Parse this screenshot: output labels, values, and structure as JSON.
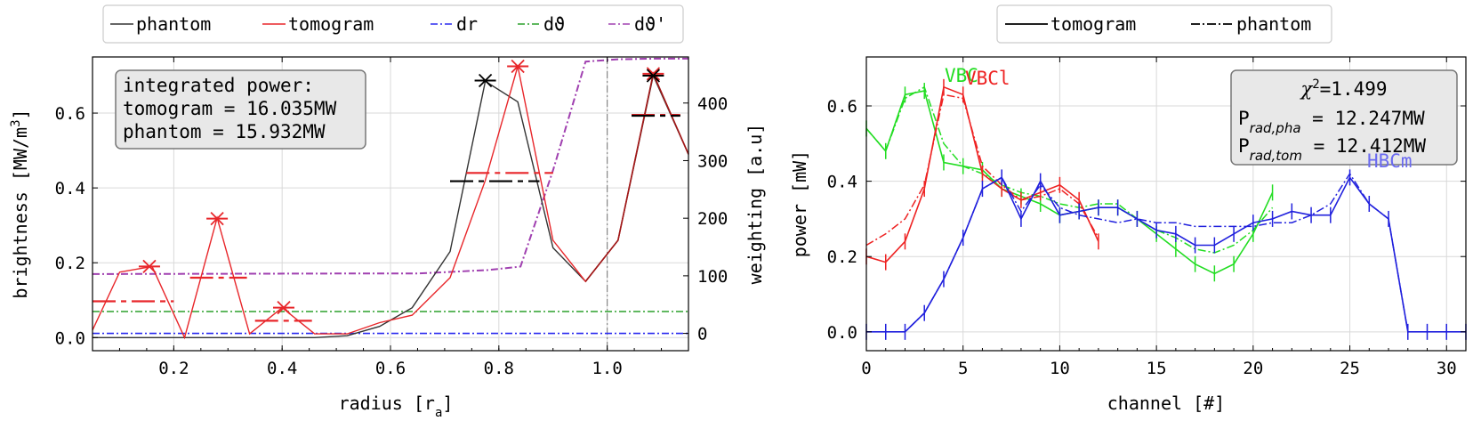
{
  "colors": {
    "phantom": "#333333",
    "tomogram": "#e8262a",
    "dr": "#2a2aef",
    "dtheta": "#2ca02c",
    "dtheta_prime": "#a040b0",
    "VBC": "#22dd22",
    "VBCl": "#ee2222",
    "HBCm": "#2020dd",
    "HBCm_label": "#6a6af0",
    "box_face": "#e8e8e8",
    "box_edge": "#777777",
    "grid": "#d9d9d9",
    "dashed_vline": "#888888"
  },
  "chart_data": [
    {
      "type": "line",
      "xlabel": "radius [r_a]",
      "ylabel": "brightness [MW/m^3]",
      "y2label": "weighting [a.u]",
      "xlim": [
        0.05,
        1.15
      ],
      "ylim": [
        -0.035,
        0.75
      ],
      "y2lim": [
        -30,
        480
      ],
      "xticks": [
        "0.2",
        "0.4",
        "0.6",
        "0.8",
        "1.0"
      ],
      "yticks": [
        "0.0",
        "0.2",
        "0.4",
        "0.6"
      ],
      "y2ticks": [
        "0",
        "100",
        "200",
        "300",
        "400"
      ],
      "legend": [
        "phantom",
        "tomogram",
        "dr",
        "dϑ",
        "dϑ'"
      ],
      "annotation": {
        "line1": "integrated power:",
        "line2": "tomogram = 16.035MW",
        "line3": "phantom = 15.932MW"
      },
      "series": {
        "phantom": {
          "x": [
            0.05,
            0.1,
            0.16,
            0.22,
            0.28,
            0.34,
            0.4,
            0.46,
            0.52,
            0.58,
            0.64,
            0.71,
            0.775,
            0.835,
            0.9,
            0.96,
            1.02,
            1.085,
            1.15
          ],
          "y": [
            0.0,
            0.0,
            0.0,
            0.0,
            0.0,
            0.0,
            0.0,
            0.0,
            0.005,
            0.03,
            0.08,
            0.23,
            0.685,
            0.63,
            0.24,
            0.15,
            0.26,
            0.7,
            0.49
          ]
        },
        "tomogram": {
          "x": [
            0.05,
            0.1,
            0.16,
            0.22,
            0.28,
            0.34,
            0.4,
            0.46,
            0.52,
            0.58,
            0.64,
            0.71,
            0.775,
            0.835,
            0.9,
            0.96,
            1.02,
            1.085,
            1.15
          ],
          "y": [
            0.02,
            0.175,
            0.19,
            0.0,
            0.32,
            0.01,
            0.08,
            0.01,
            0.01,
            0.04,
            0.06,
            0.16,
            0.42,
            0.725,
            0.26,
            0.15,
            0.26,
            0.705,
            0.49
          ]
        },
        "dr": {
          "x": [
            0.05,
            1.15
          ],
          "y2": [
            0,
            0
          ]
        },
        "dtheta": {
          "x": [
            0.05,
            1.15
          ],
          "y2": [
            38,
            38
          ]
        },
        "dtheta_prime": {
          "x": [
            0.05,
            0.5,
            0.65,
            0.78,
            0.84,
            0.9,
            0.96,
            1.02,
            1.085,
            1.15
          ],
          "y2": [
            103,
            104,
            104,
            110,
            116,
            283,
            472,
            476,
            477,
            477
          ]
        }
      },
      "tomogram_markers": [
        {
          "x": 0.155,
          "y": 0.19
        },
        {
          "x": 0.28,
          "y": 0.318
        },
        {
          "x": 0.403,
          "y": 0.08
        },
        {
          "x": 0.835,
          "y": 0.725
        },
        {
          "x": 1.085,
          "y": 0.705
        }
      ],
      "phantom_markers": [
        {
          "x": 0.775,
          "y": 0.687
        },
        {
          "x": 1.085,
          "y": 0.7
        }
      ],
      "tomogram_bins": [
        {
          "x0": 0.05,
          "x1": 0.2,
          "y": 0.097
        },
        {
          "x0": 0.23,
          "x1": 0.335,
          "y": 0.16
        },
        {
          "x0": 0.35,
          "x1": 0.455,
          "y": 0.045
        },
        {
          "x0": 0.74,
          "x1": 0.9,
          "y": 0.44
        },
        {
          "x0": 1.045,
          "x1": 1.135,
          "y": 0.595
        }
      ],
      "phantom_bins": [
        {
          "x0": 0.71,
          "x1": 0.875,
          "y": 0.418
        },
        {
          "x0": 1.045,
          "x1": 1.135,
          "y": 0.593
        }
      ],
      "vline_x": 1.0
    },
    {
      "type": "line",
      "xlabel": "channel [#]",
      "ylabel": "power [mW]",
      "xlim": [
        0,
        31
      ],
      "ylim": [
        -0.05,
        0.73
      ],
      "xticks": [
        "0",
        "5",
        "10",
        "15",
        "20",
        "25",
        "30"
      ],
      "yticks": [
        "0.0",
        "0.2",
        "0.4",
        "0.6"
      ],
      "legend": [
        "tomogram",
        "phantom"
      ],
      "annotation": {
        "chi": "χ²=1.499",
        "pha_label": "P",
        "pha_sub": "rad,pha",
        "pha_val": " = 12.247MW",
        "tom_label": "P",
        "tom_sub": "rad,tom",
        "tom_val": " = 12.412MW"
      },
      "labels": {
        "VBC": "VBC",
        "VBCl": "VBCl",
        "HBCm": "HBCm"
      },
      "series": [
        {
          "name": "VBC",
          "x": [
            0,
            1,
            2,
            3,
            4,
            5,
            6,
            7,
            8,
            9,
            10,
            11,
            12,
            13,
            14,
            15,
            16,
            17,
            18,
            19,
            20,
            21
          ],
          "tomogram": [
            0.54,
            0.48,
            0.63,
            0.64,
            0.45,
            0.44,
            0.43,
            0.38,
            0.36,
            0.34,
            0.31,
            0.32,
            0.33,
            0.33,
            0.3,
            0.26,
            0.22,
            0.18,
            0.155,
            0.18,
            0.26,
            0.37
          ],
          "phantom": [
            0.54,
            0.48,
            0.62,
            0.65,
            0.5,
            0.44,
            0.42,
            0.39,
            0.37,
            0.36,
            0.34,
            0.33,
            0.34,
            0.34,
            0.3,
            0.27,
            0.25,
            0.22,
            0.21,
            0.23,
            0.27,
            0.33
          ]
        },
        {
          "name": "VBCl",
          "x": [
            0,
            1,
            2,
            3,
            4,
            5,
            6,
            7,
            8,
            9,
            10,
            11,
            12
          ],
          "tomogram": [
            0.2,
            0.185,
            0.24,
            0.38,
            0.65,
            0.63,
            0.42,
            0.38,
            0.35,
            0.37,
            0.39,
            0.35,
            0.24
          ],
          "phantom": [
            0.23,
            0.26,
            0.3,
            0.39,
            0.63,
            0.62,
            0.44,
            0.39,
            0.35,
            0.36,
            0.38,
            0.34,
            0.25
          ]
        },
        {
          "name": "HBCm",
          "x": [
            0,
            1,
            2,
            3,
            4,
            5,
            6,
            7,
            8,
            9,
            10,
            11,
            12,
            13,
            14,
            15,
            16,
            17,
            18,
            19,
            20,
            21,
            22,
            23,
            24,
            25,
            26,
            27,
            28,
            29,
            30,
            31
          ],
          "tomogram": [
            0.0,
            0.0,
            0.0,
            0.05,
            0.14,
            0.25,
            0.38,
            0.41,
            0.3,
            0.4,
            0.31,
            0.32,
            0.33,
            0.33,
            0.3,
            0.27,
            0.26,
            0.23,
            0.23,
            0.26,
            0.29,
            0.3,
            0.32,
            0.31,
            0.31,
            0.41,
            0.34,
            0.3,
            0.0,
            0.0,
            0.0,
            0.0
          ],
          "phantom": [
            0.0,
            0.0,
            0.0,
            0.05,
            0.14,
            0.25,
            0.38,
            0.41,
            0.32,
            0.39,
            0.33,
            0.31,
            0.3,
            0.29,
            0.3,
            0.29,
            0.29,
            0.28,
            0.28,
            0.28,
            0.28,
            0.29,
            0.29,
            0.31,
            0.34,
            0.42,
            0.34,
            0.3,
            0.0,
            0.0,
            0.0,
            0.0
          ]
        }
      ]
    }
  ]
}
